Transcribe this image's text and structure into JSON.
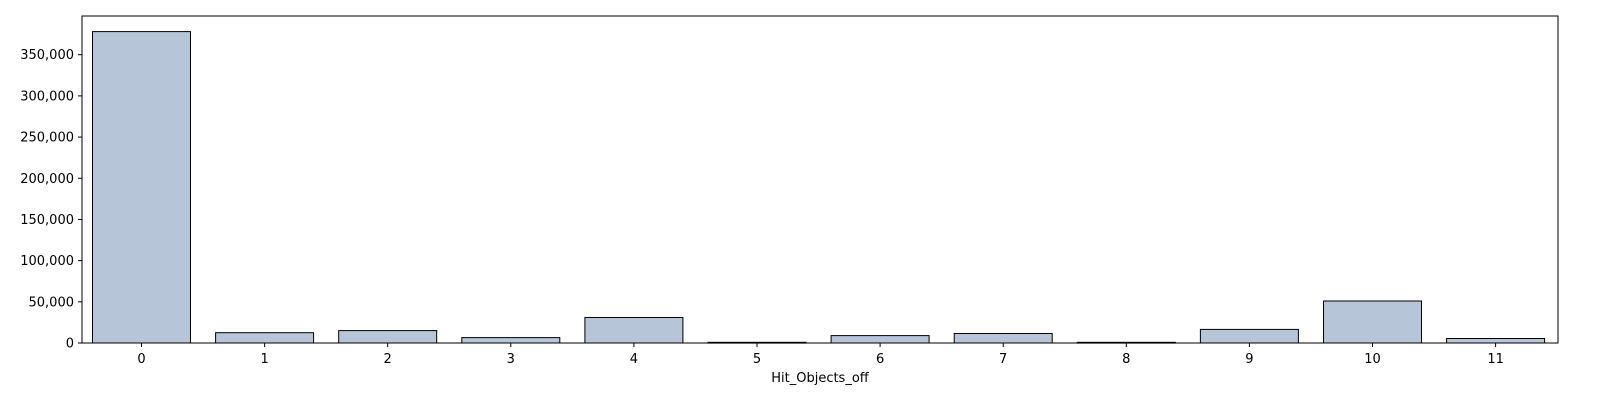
{
  "chart_data": {
    "type": "bar",
    "categories": [
      "0",
      "1",
      "2",
      "3",
      "4",
      "5",
      "6",
      "7",
      "8",
      "9",
      "10",
      "11"
    ],
    "values": [
      378000,
      12500,
      15000,
      6500,
      31000,
      800,
      9000,
      11500,
      800,
      16500,
      51000,
      5500
    ],
    "title": "",
    "xlabel": "Hit_Objects_off",
    "ylabel": "",
    "ylim": [
      0,
      397000
    ],
    "yticks": [
      0,
      50000,
      100000,
      150000,
      200000,
      250000,
      300000,
      350000
    ],
    "ytick_labels": [
      "0",
      "50,000",
      "100,000",
      "150,000",
      "200,000",
      "250,000",
      "300,000",
      "350,000"
    ],
    "grid": false,
    "bar_color": "#b7c5d8",
    "edge_color": "#000000"
  }
}
